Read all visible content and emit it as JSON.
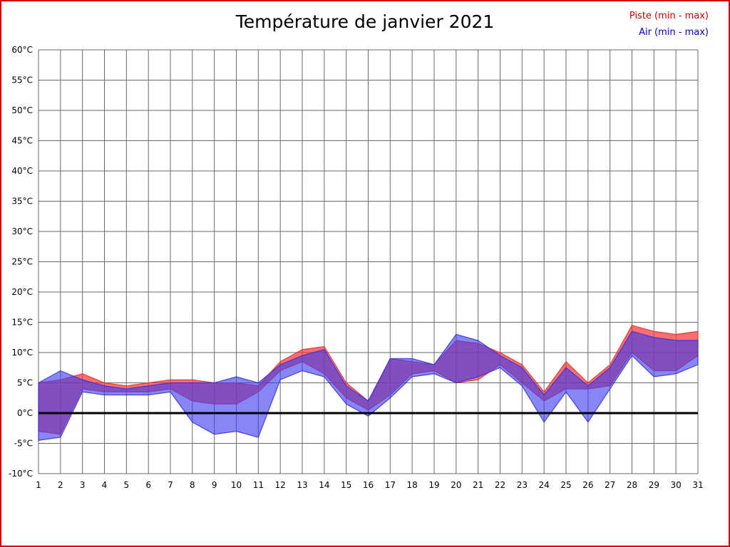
{
  "page": {
    "border_color": "#cc0000",
    "background": "#ffffff"
  },
  "chart_data": {
    "type": "area",
    "title": "Température de janvier 2021",
    "x": [
      1,
      2,
      3,
      4,
      5,
      6,
      7,
      8,
      9,
      10,
      11,
      12,
      13,
      14,
      15,
      16,
      17,
      18,
      19,
      20,
      21,
      22,
      23,
      24,
      25,
      26,
      27,
      28,
      29,
      30,
      31
    ],
    "ylim": [
      -10,
      60
    ],
    "ytick_step": 5,
    "ytick_suffix": "°C",
    "grid": true,
    "zero_line_at": 0,
    "legend_position": "top-right",
    "series": [
      {
        "name": "Piste (min - max)",
        "color": "#cc0000",
        "fill": "rgba(245,55,55,0.72)",
        "edge": "#e03030",
        "min": [
          -3,
          -3.5,
          4,
          3.5,
          3.5,
          3.5,
          4,
          2,
          1.5,
          1.5,
          3.5,
          7,
          8.5,
          6.5,
          2.5,
          0.5,
          3,
          6.5,
          7,
          5,
          5.5,
          8,
          5,
          2,
          4,
          4,
          4.5,
          10,
          7,
          7,
          9.5
        ],
        "max": [
          5,
          5.5,
          6.5,
          5,
          4.5,
          5,
          5.5,
          5.5,
          5,
          5,
          4.5,
          8.5,
          10.5,
          11,
          5,
          2,
          9,
          8.5,
          8,
          12,
          11.5,
          10,
          8,
          3.5,
          8.5,
          5,
          8,
          14.5,
          13.5,
          13,
          13.5
        ]
      },
      {
        "name": "Air (min - max)",
        "color": "#0000cc",
        "fill": "rgba(60,60,240,0.62)",
        "edge": "#3030e0",
        "min": [
          -4.5,
          -4,
          3.5,
          3,
          3,
          3,
          3.5,
          -1.5,
          -3.5,
          -3,
          -4,
          5.5,
          7,
          6,
          1.5,
          -0.5,
          2.5,
          6,
          6.5,
          5,
          6,
          7.5,
          4.5,
          -1.5,
          3.5,
          -1.5,
          4,
          9.5,
          6,
          6.5,
          8
        ],
        "max": [
          5,
          7,
          5.5,
          4.5,
          4,
          4.5,
          5,
          5,
          5,
          6,
          5,
          8,
          9.5,
          10.5,
          4.5,
          2,
          9,
          9,
          8,
          13,
          12,
          9.5,
          7.5,
          3,
          7.5,
          4.5,
          7.5,
          13.5,
          12.5,
          12,
          12
        ]
      }
    ]
  }
}
